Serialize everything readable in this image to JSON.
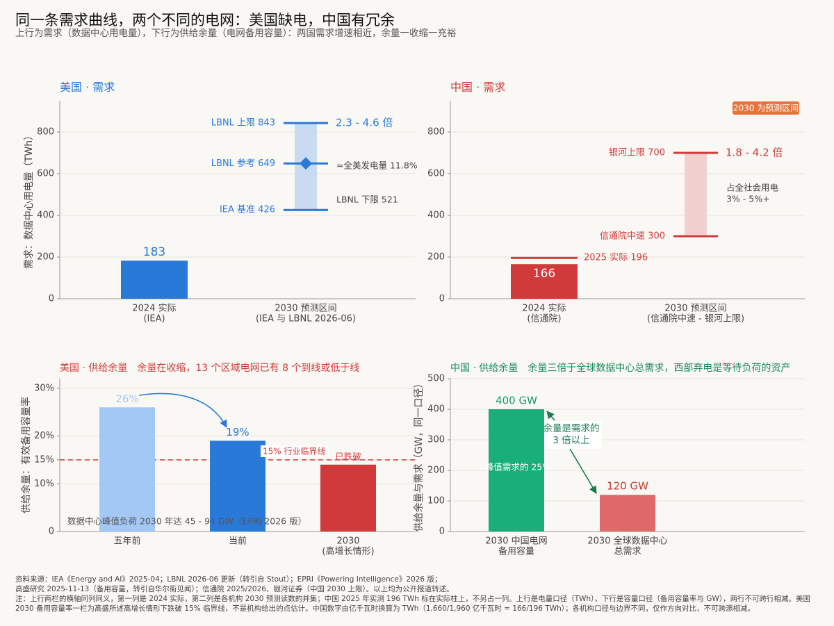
{
  "title": "同一条需求曲线，两个不同的电网：美国缺电，中国有冗余",
  "subtitle": "上行为需求（数据中心用电量），下行为供给余量（电网备用容量）：两国需求增速相近，余量一收缩一充裕",
  "notes": [
    "资料来源：IEA《Energy and AI》2025-04；LBNL 2026-06 更新（转引自 Stout）；EPRI《Powering Intelligence》2026 版；",
    "高盛研究 2025-11-13（备用容量，转引自华尔街见闻）；信通院 2025/2026、银河证券（中国 2030 上限）。以上均为公开报道转述。",
    "注：上行两栏的横轴同列同义，第一列是 2024 实际，第二列是各机构 2030 预测读数的并集；中国 2025 年实测 196 TWh 标在实际柱上，不另占一列。上行是电量口径（TWh），下行是容量口径（备用容量率与 GW），两行不可跨行相减。美国",
    "2030 备用容量率一栏为高盛所述高增长情形下跌破 15% 临界线，不是机构给出的点估计。中国数字由亿千瓦时换算为 TWh（1,660/1,960 亿千瓦时 = 166/196 TWh）；各机构口径与边界不同，仅作方向对比，不可跨源相减。"
  ],
  "chart_data": [
    {
      "type": "range_bar",
      "title": "美国 · 需求",
      "ylabel": "需求：数据中心用电量（TWh）",
      "categories": [
        [
          "2024 实际",
          "(IEA)"
        ],
        [
          "2030 预测区间",
          "(IEA 与 LBNL 2026-06)"
        ]
      ],
      "values": [
        183,
        null
      ],
      "color": "#2979d9",
      "range_color": "#c9dbf0",
      "markers": [
        {
          "label": "LBNL 上限 843",
          "value": 843
        },
        {
          "label": "LBNL 参考 649",
          "value": 649,
          "shape": "diamond"
        },
        {
          "label": "IEA 基准 426",
          "value": 426
        }
      ],
      "range_label": "2.3 - 4.6 倍",
      "annotations": [
        "≈全美发电量 11.8%",
        "LBNL 下限 521"
      ],
      "ylim": [
        0,
        950
      ],
      "yticks": [
        0,
        200,
        400,
        600,
        800
      ],
      "grid": true
    },
    {
      "type": "range_bar",
      "title": "中国 · 需求",
      "badge": "2030 为预测区间",
      "categories": [
        [
          "2024 实际",
          "(信通院)"
        ],
        [
          "2030 预测区间",
          "(信通院中速 - 银河上限)"
        ]
      ],
      "values": [
        166,
        null
      ],
      "color": "#d13a3a",
      "range_color": "#f3d0d0",
      "actual_line": {
        "label": "2025 实际 196",
        "value": 196
      },
      "markers": [
        {
          "label": "银河上限 700",
          "value": 700
        },
        {
          "label": "信通院中速 300",
          "value": 300
        }
      ],
      "range_label": "1.8 - 4.2 倍",
      "annotations": [
        "占全社会用电",
        "3% - 5%+"
      ],
      "ylim": [
        0,
        950
      ],
      "yticks": [
        0,
        200,
        400,
        600,
        800
      ],
      "grid": true
    },
    {
      "type": "bar",
      "title": "美国 · 供给余量",
      "subtitle": "余量在收缩，13 个区域电网已有 8 个到线或低于线",
      "ylabel": "供给余量：有效备用容量率",
      "categories": [
        [
          "五年前"
        ],
        [
          "当前"
        ],
        [
          "2030",
          "(高增长情形)"
        ]
      ],
      "values": [
        26,
        19,
        14
      ],
      "value_labels": [
        "26%",
        "19%",
        null
      ],
      "colors": [
        "#a3c8f5",
        "#2979d9",
        "#d13a3a"
      ],
      "threshold": {
        "value": 15,
        "label": "15% 行业临界线",
        "color": "#d13a3a"
      },
      "annotations": [
        "已跌破",
        "数据中心峰值负荷 2030 年达 45 - 94 GW（EPRI 2026 版）"
      ],
      "ylim": [
        0,
        32
      ],
      "yticks": [
        0,
        {
          "value": 10,
          "label": "10%"
        },
        {
          "value": 15,
          "label": "15%"
        },
        {
          "value": 20,
          "label": "20%"
        },
        {
          "value": 30,
          "label": "30%"
        }
      ],
      "grid": true
    },
    {
      "type": "bar",
      "title": "中国 · 供给余量",
      "subtitle": "余量三倍于全球数据中心总需求，西部弃电是等待负荷的资产",
      "ylabel": "供给余量与需求（GW，同一口径）",
      "categories": [
        [
          "2030 中国电网",
          "备用容量"
        ],
        [
          "2030 全球数据中心",
          "总需求"
        ]
      ],
      "values": [
        400,
        120
      ],
      "value_labels": [
        "400 GW",
        "120 GW"
      ],
      "colors": [
        "#1aaf7a",
        "#df6a6a"
      ],
      "annotations": [
        "余量是需求的",
        "3 倍以上",
        "峰值需求的 25%"
      ],
      "ylim": [
        0,
        500
      ],
      "yticks": [
        0,
        100,
        200,
        300,
        400,
        500
      ],
      "grid": true
    }
  ]
}
